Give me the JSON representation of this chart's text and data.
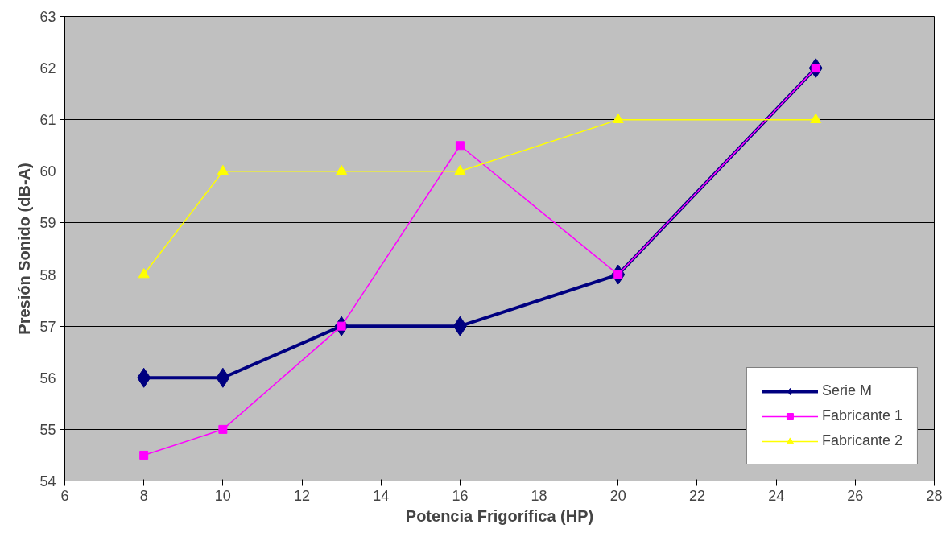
{
  "chart_data": {
    "type": "line",
    "xlabel": "Potencia Frigorífica (HP)",
    "ylabel": "Presión Sonido (dB-A)",
    "x": [
      8,
      10,
      13,
      16,
      20,
      25
    ],
    "series": [
      {
        "name": "Serie M",
        "color": "#000080",
        "values": [
          56,
          56,
          57,
          57,
          58,
          62
        ],
        "marker": "diamond"
      },
      {
        "name": "Fabricante 1",
        "color": "#ff00ff",
        "values": [
          54.5,
          55,
          57,
          60.5,
          58,
          62
        ],
        "marker": "square"
      },
      {
        "name": "Fabricante 2",
        "color": "#ffff00",
        "values": [
          58,
          60,
          60,
          60,
          61,
          61
        ],
        "marker": "triangle"
      }
    ],
    "xlim": [
      6,
      28
    ],
    "xticks": [
      6,
      8,
      10,
      12,
      14,
      16,
      18,
      20,
      22,
      24,
      26,
      28
    ],
    "ylim": [
      54,
      63
    ],
    "yticks": [
      54,
      55,
      56,
      57,
      58,
      59,
      60,
      61,
      62,
      63
    ],
    "grid": "y",
    "legend": "bottom right",
    "line_style": "solid"
  }
}
